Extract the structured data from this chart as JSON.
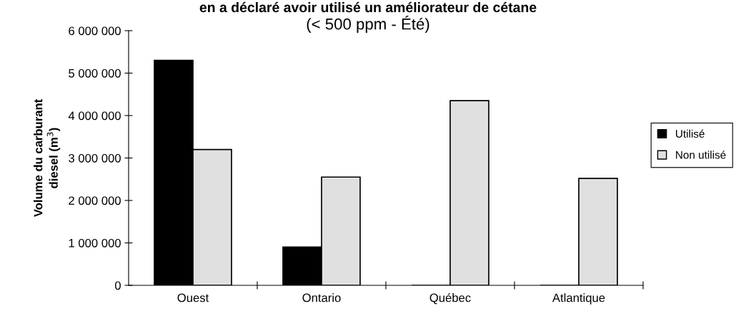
{
  "chart_data": {
    "type": "bar",
    "title": "en a déclaré avoir utilisé un améliorateur de cétane",
    "subtitle": "(< 500 ppm - Été)",
    "ylabel": "Volume du carburant\ndiesel (m$^{3}$)",
    "categories": [
      "Ouest",
      "Ontario",
      "Québec",
      "Atlantique"
    ],
    "series": [
      {
        "name": "Utilisé",
        "color": "#000000",
        "values": [
          5300000,
          900000,
          0,
          0
        ]
      },
      {
        "name": "Non utilisé",
        "color": "#e0e0e0",
        "values": [
          3200000,
          2550000,
          4350000,
          2520000
        ]
      }
    ],
    "ylim": [
      0,
      6000000
    ],
    "yticks": [
      {
        "value": 0,
        "label": "0"
      },
      {
        "value": 1000000,
        "label": "1 000 000"
      },
      {
        "value": 2000000,
        "label": "2 000 000"
      },
      {
        "value": 3000000,
        "label": "3 000 000"
      },
      {
        "value": 4000000,
        "label": "4 000 000"
      },
      {
        "value": 5000000,
        "label": "5 000 000"
      },
      {
        "value": 6000000,
        "label": "6 000 000"
      }
    ],
    "grid": false,
    "legend": "right"
  }
}
